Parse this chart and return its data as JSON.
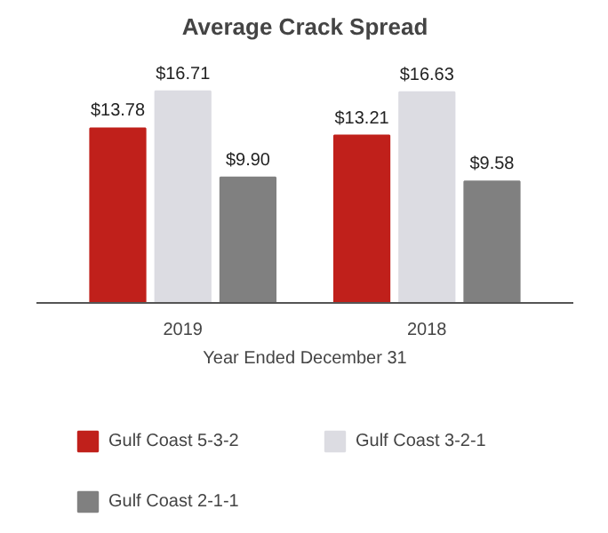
{
  "chart_data": {
    "type": "bar",
    "title": "Average Crack Spread",
    "xlabel": "Year Ended December 31",
    "categories": [
      "2019",
      "2018"
    ],
    "series": [
      {
        "name": "Gulf Coast 5-3-2",
        "color": "#c0201b",
        "values": [
          13.78,
          13.21
        ],
        "value_labels": [
          "$13.78",
          "$13.21"
        ]
      },
      {
        "name": "Gulf Coast 3-2-1",
        "color": "#dcdce2",
        "values": [
          16.71,
          16.63
        ],
        "value_labels": [
          "$16.71",
          "$16.63"
        ]
      },
      {
        "name": "Gulf Coast 2-1-1",
        "color": "#808080",
        "values": [
          9.9,
          9.58
        ],
        "value_labels": [
          "$9.90",
          "$9.58"
        ]
      }
    ],
    "legend": "bottom"
  }
}
